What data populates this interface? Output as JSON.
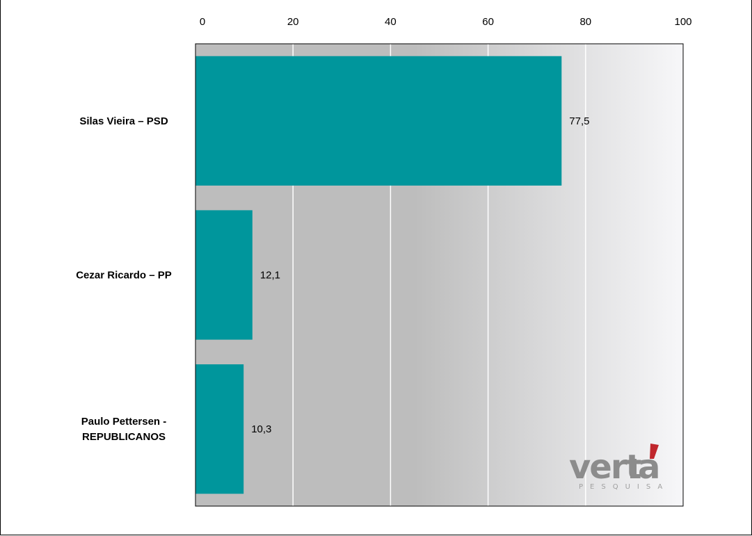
{
  "chart_data": {
    "type": "bar",
    "orientation": "horizontal",
    "categories": [
      "Silas Vieira – PSD",
      "Cezar Ricardo – PP",
      "Paulo Pettersen - REPUBLICANOS"
    ],
    "values": [
      77.5,
      12.1,
      10.3
    ],
    "value_labels": [
      "77,5",
      "12,1",
      "10,3"
    ],
    "xlim": [
      0,
      100
    ],
    "xticks": [
      0,
      20,
      40,
      60,
      80,
      100
    ],
    "x_axis_position": "top",
    "grid": true,
    "title": "",
    "xlabel": "",
    "ylabel": "",
    "colors": {
      "bar": "#00969c",
      "plot_background_start": "#bdbdbd",
      "plot_background_end": "#f7f7f9",
      "gridline": "#ffffff"
    }
  },
  "logo": {
    "name": "verita",
    "main_text": "verita",
    "sub_text": "PESQUISA",
    "accent_color": "#c0272d"
  }
}
